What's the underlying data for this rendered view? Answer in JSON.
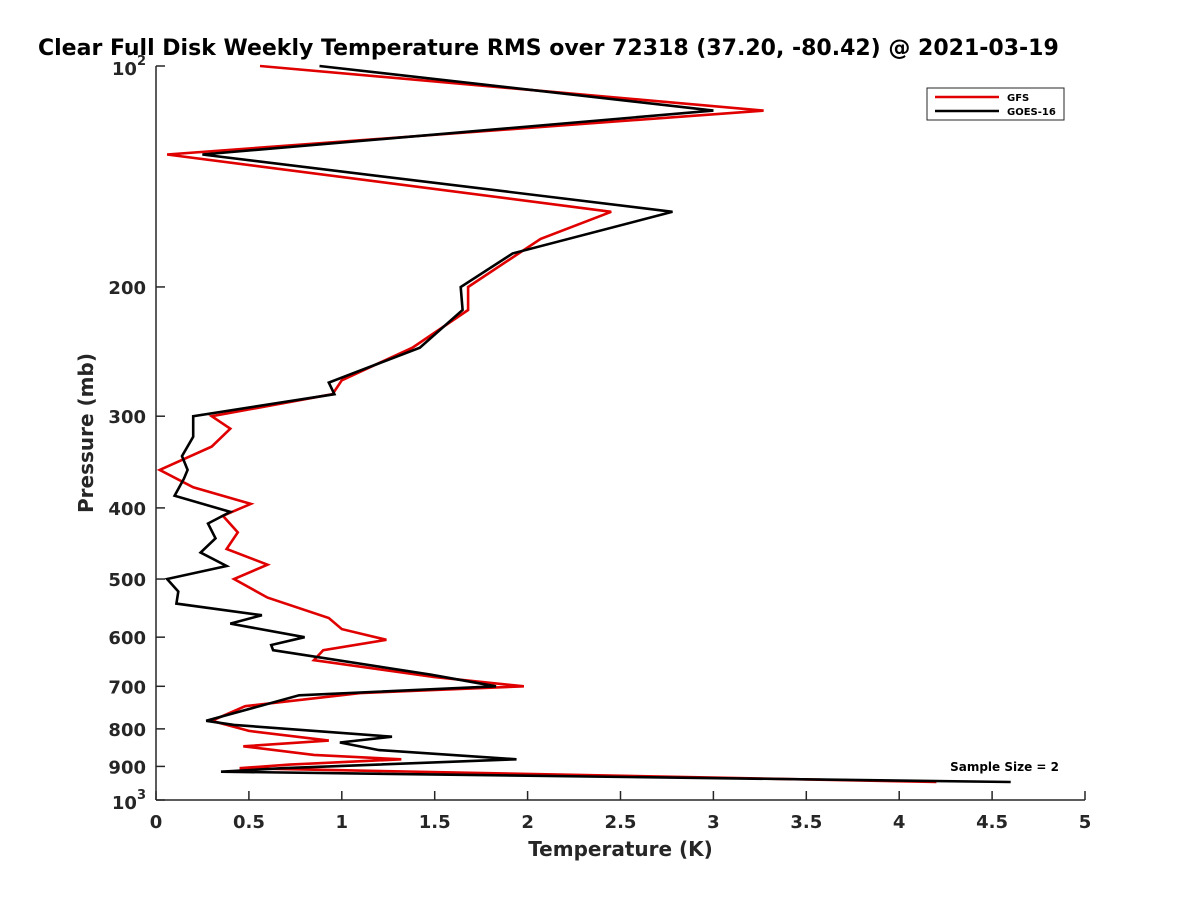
{
  "chart_data": {
    "type": "line",
    "title": "Clear Full Disk Weekly Temperature RMS over 72318 (37.20, -80.42) @ 2021-03-19",
    "xlabel": "Temperature (K)",
    "ylabel": "Pressure (mb)",
    "xlim": [
      0,
      5
    ],
    "ylim": [
      100,
      1000
    ],
    "y_scale": "log",
    "y_reversed": true,
    "grid": false,
    "legend_position": "top-right",
    "x_ticks": [
      0,
      0.5,
      1,
      1.5,
      2,
      2.5,
      3,
      3.5,
      4,
      4.5,
      5
    ],
    "x_tick_labels": [
      "0",
      "0.5",
      "1",
      "1.5",
      "2",
      "2.5",
      "3",
      "3.5",
      "4",
      "4.5",
      "5"
    ],
    "y_ticks": [
      200,
      300,
      400,
      500,
      600,
      700,
      800,
      900
    ],
    "y_tick_labels": [
      "200",
      "300",
      "400",
      "500",
      "600",
      "700",
      "800",
      "900"
    ],
    "y_decade_ticks": [
      {
        "value": 100,
        "base": "10",
        "exp": "2"
      },
      {
        "value": 1000,
        "base": "10",
        "exp": "3"
      }
    ],
    "annotation": "Sample Size = 2",
    "series": [
      {
        "name": "GFS",
        "color": "#e00000",
        "points": [
          [
            0.56,
            100
          ],
          [
            3.27,
            115
          ],
          [
            0.06,
            132
          ],
          [
            2.45,
            158
          ],
          [
            2.07,
            172
          ],
          [
            1.68,
            200
          ],
          [
            1.68,
            215
          ],
          [
            1.38,
            242
          ],
          [
            1.0,
            268
          ],
          [
            0.95,
            280
          ],
          [
            0.3,
            300
          ],
          [
            0.4,
            312
          ],
          [
            0.3,
            330
          ],
          [
            0.02,
            355
          ],
          [
            0.2,
            375
          ],
          [
            0.51,
            395
          ],
          [
            0.36,
            410
          ],
          [
            0.44,
            432
          ],
          [
            0.38,
            455
          ],
          [
            0.6,
            478
          ],
          [
            0.42,
            500
          ],
          [
            0.6,
            530
          ],
          [
            0.93,
            565
          ],
          [
            1.0,
            585
          ],
          [
            1.24,
            605
          ],
          [
            0.9,
            625
          ],
          [
            0.85,
            645
          ],
          [
            1.5,
            680
          ],
          [
            1.98,
            700
          ],
          [
            1.1,
            715
          ],
          [
            0.48,
            745
          ],
          [
            0.3,
            780
          ],
          [
            0.5,
            805
          ],
          [
            0.93,
            830
          ],
          [
            0.47,
            845
          ],
          [
            0.85,
            868
          ],
          [
            1.32,
            880
          ],
          [
            0.72,
            895
          ],
          [
            0.45,
            905
          ],
          [
            4.2,
            945
          ]
        ]
      },
      {
        "name": "GOES-16",
        "color": "#000000",
        "points": [
          [
            0.88,
            100
          ],
          [
            3.0,
            115
          ],
          [
            0.25,
            132
          ],
          [
            2.78,
            158
          ],
          [
            1.92,
            180
          ],
          [
            1.64,
            200
          ],
          [
            1.65,
            215
          ],
          [
            1.42,
            242
          ],
          [
            0.93,
            270
          ],
          [
            0.96,
            280
          ],
          [
            0.2,
            300
          ],
          [
            0.2,
            320
          ],
          [
            0.14,
            340
          ],
          [
            0.17,
            355
          ],
          [
            0.15,
            365
          ],
          [
            0.1,
            385
          ],
          [
            0.4,
            405
          ],
          [
            0.28,
            420
          ],
          [
            0.32,
            440
          ],
          [
            0.24,
            460
          ],
          [
            0.38,
            480
          ],
          [
            0.06,
            500
          ],
          [
            0.12,
            520
          ],
          [
            0.11,
            540
          ],
          [
            0.57,
            560
          ],
          [
            0.4,
            575
          ],
          [
            0.8,
            600
          ],
          [
            0.62,
            615
          ],
          [
            0.63,
            625
          ],
          [
            1.48,
            675
          ],
          [
            1.83,
            700
          ],
          [
            0.77,
            720
          ],
          [
            0.27,
            780
          ],
          [
            0.42,
            790
          ],
          [
            1.27,
            820
          ],
          [
            0.99,
            835
          ],
          [
            1.2,
            855
          ],
          [
            1.94,
            880
          ],
          [
            0.68,
            905
          ],
          [
            0.35,
            915
          ],
          [
            4.6,
            945
          ]
        ]
      }
    ]
  }
}
